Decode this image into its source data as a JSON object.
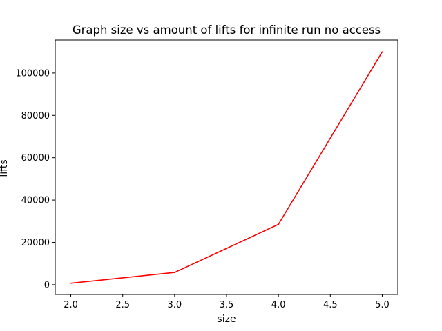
{
  "chart_data": {
    "type": "line",
    "title": "Graph size vs amount of lifts for infinite run no access",
    "xlabel": "size",
    "ylabel": "lifts",
    "xlim": [
      1.85,
      5.15
    ],
    "ylim": [
      -4600,
      115600
    ],
    "x_ticks": [
      2.0,
      2.5,
      3.0,
      3.5,
      4.0,
      4.5,
      5.0
    ],
    "x_tick_labels": [
      "2.0",
      "2.5",
      "3.0",
      "3.5",
      "4.0",
      "4.5",
      "5.0"
    ],
    "y_ticks": [
      0,
      20000,
      40000,
      60000,
      80000,
      100000
    ],
    "y_tick_labels": [
      "0",
      "20000",
      "40000",
      "60000",
      "80000",
      "100000"
    ],
    "grid": false,
    "series": [
      {
        "color": "#ff0000",
        "x": [
          2,
          3,
          4,
          5
        ],
        "y": [
          700,
          5800,
          28500,
          110000
        ]
      }
    ]
  }
}
